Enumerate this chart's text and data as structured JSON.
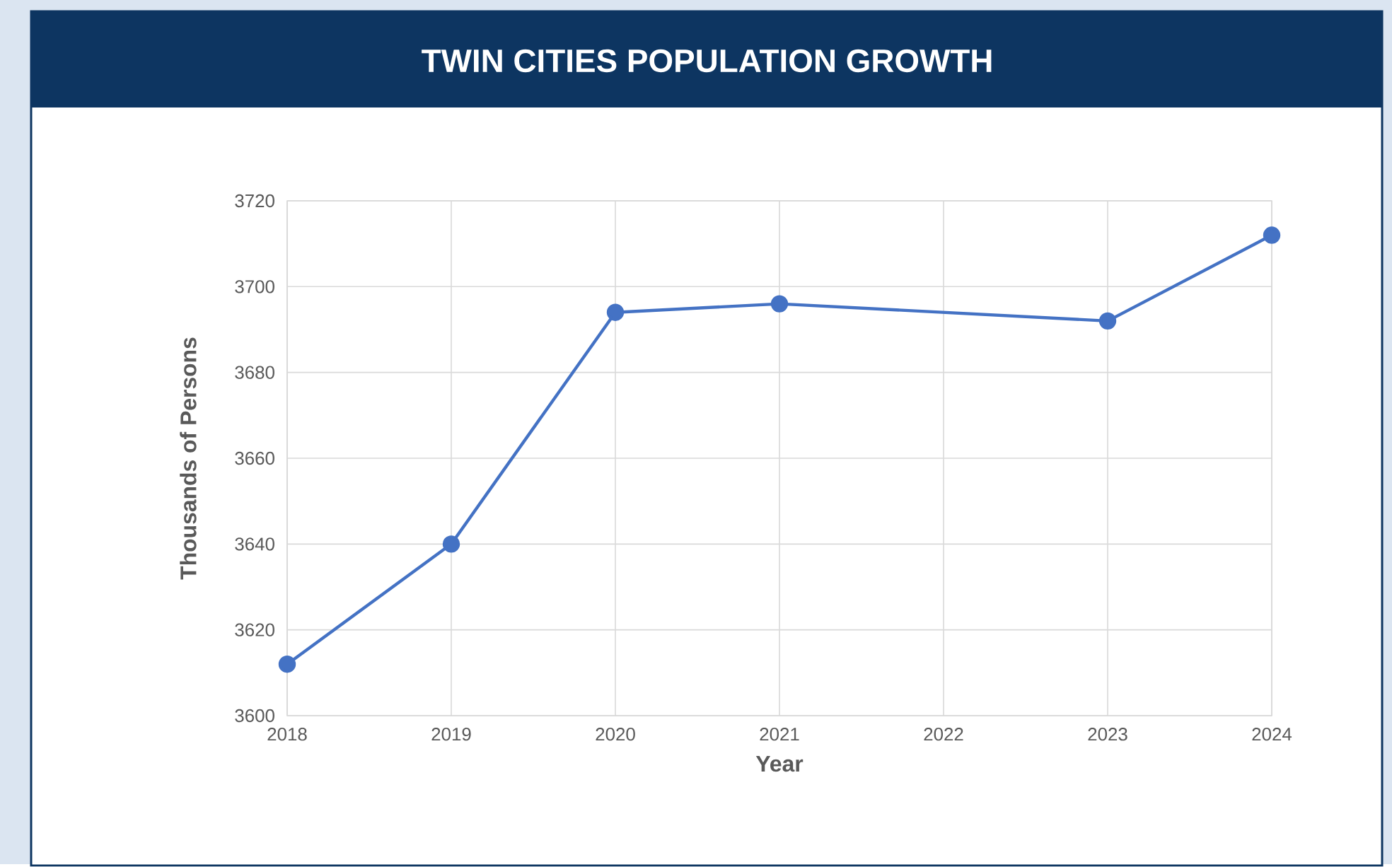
{
  "chart_data": {
    "type": "line",
    "title": "TWIN CITIES POPULATION GROWTH",
    "xlabel": "Year",
    "ylabel": "Thousands of Persons",
    "x": [
      2018,
      2019,
      2020,
      2021,
      2023,
      2024
    ],
    "series": [
      {
        "color": "#4472c4",
        "values": [
          3612,
          3640,
          3694,
          3696,
          3692,
          3712
        ]
      }
    ],
    "xlim": [
      2018,
      2024
    ],
    "xticks": [
      2018,
      2019,
      2020,
      2021,
      2022,
      2023,
      2024
    ],
    "ylim": [
      3600,
      3720
    ],
    "yticks": [
      3600,
      3620,
      3640,
      3660,
      3680,
      3700,
      3720
    ],
    "grid": true,
    "marker": "circle",
    "line_style": "solid"
  }
}
